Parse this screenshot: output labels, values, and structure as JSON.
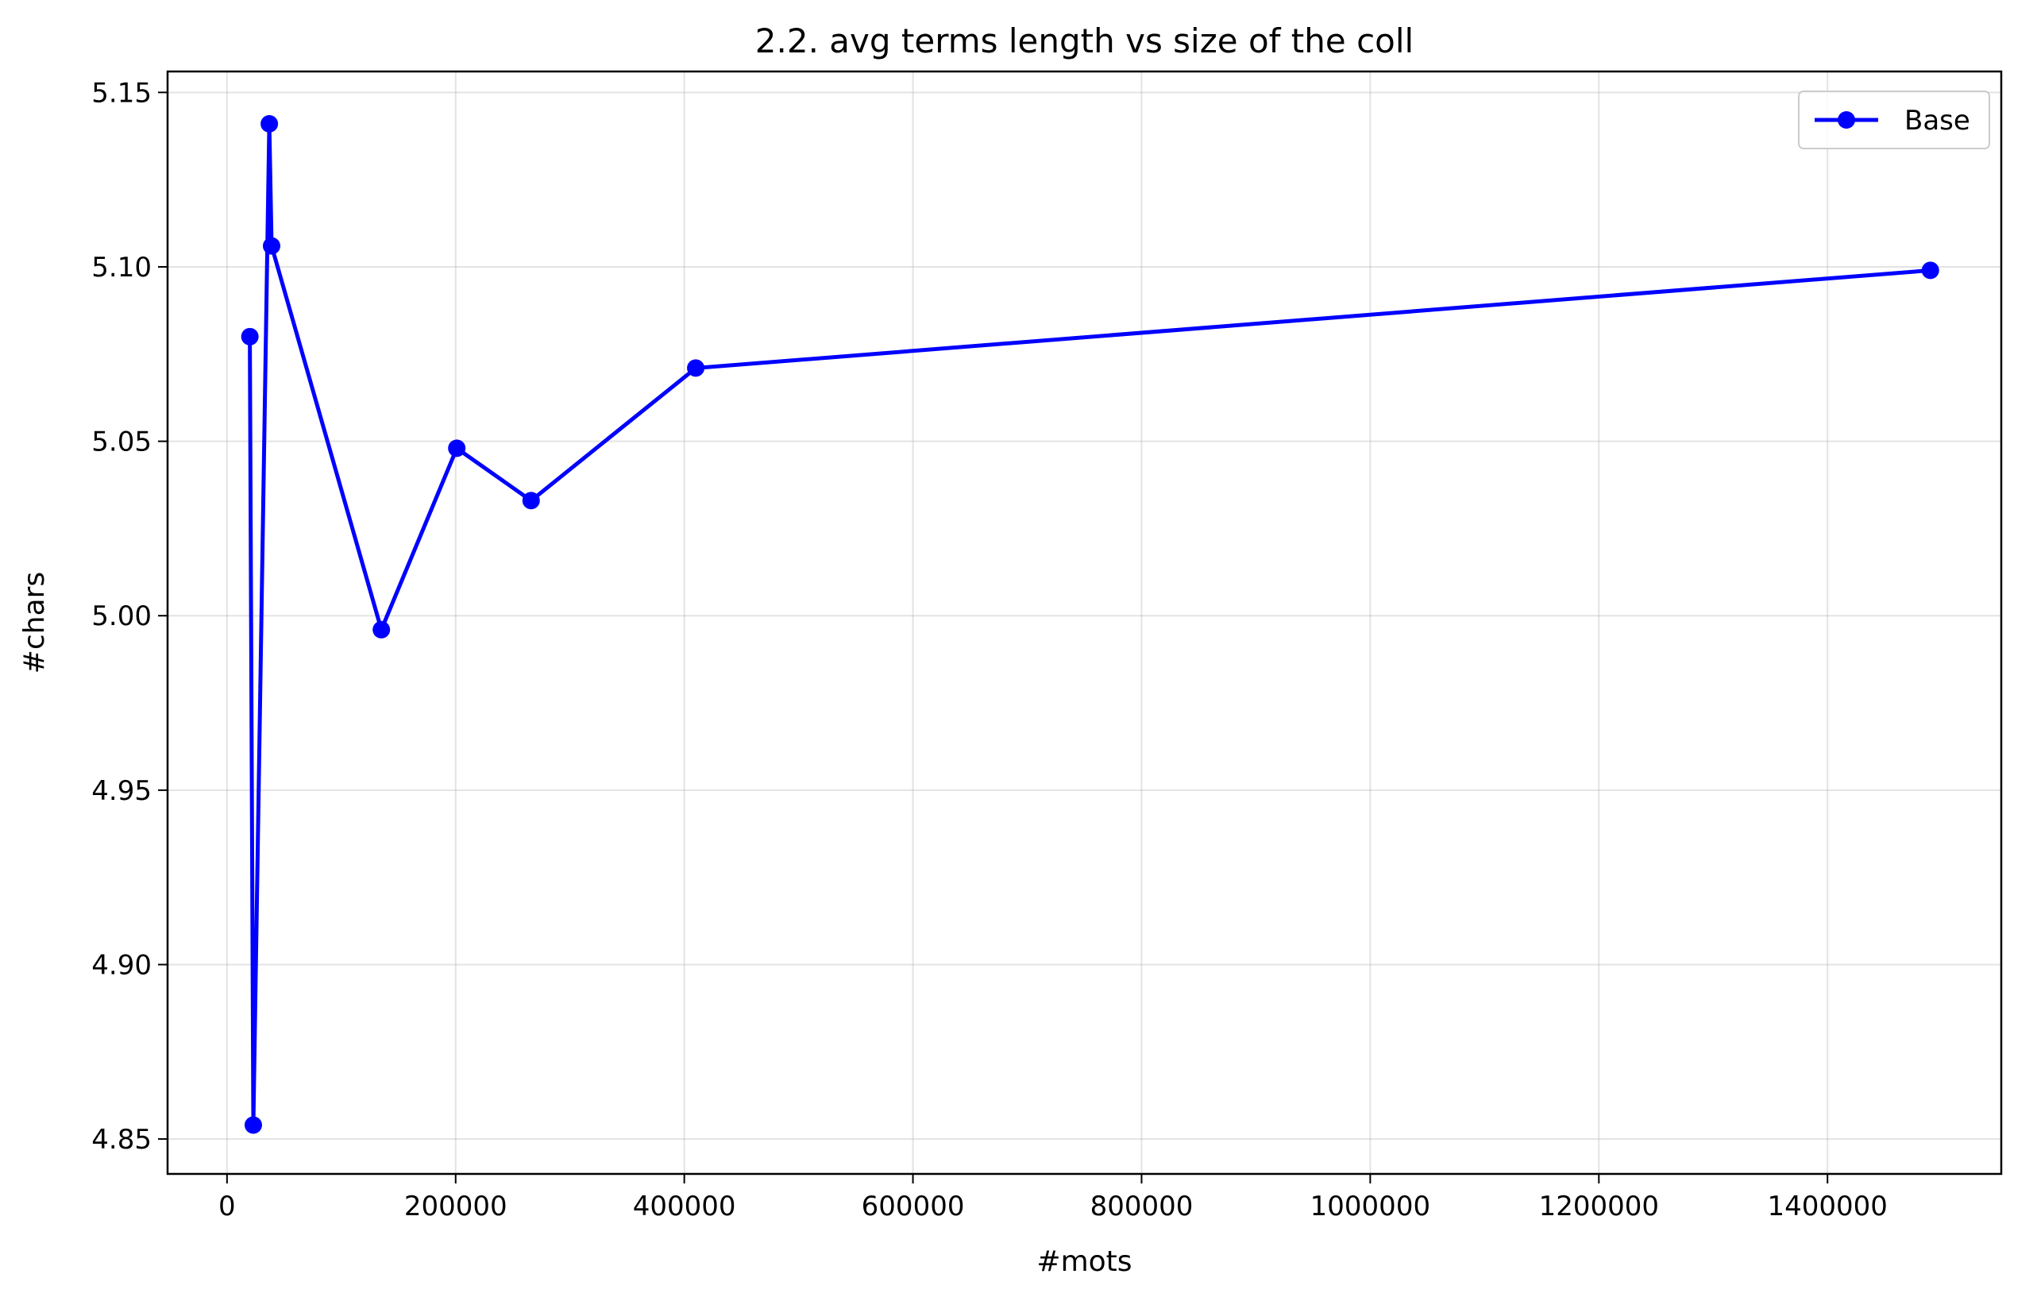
{
  "chart_data": {
    "type": "line",
    "title": "2.2. avg terms length vs size of the coll",
    "xlabel": "#mots",
    "ylabel": "#chars",
    "xlim": [
      -52000,
      1552000
    ],
    "ylim": [
      4.84,
      5.156
    ],
    "xticks": [
      0,
      200000,
      400000,
      600000,
      800000,
      1000000,
      1200000,
      1400000
    ],
    "xtick_labels": [
      "0",
      "200000",
      "400000",
      "600000",
      "800000",
      "1000000",
      "1200000",
      "1400000"
    ],
    "yticks": [
      4.85,
      4.9,
      4.95,
      5.0,
      5.05,
      5.1,
      5.15
    ],
    "ytick_labels": [
      "4.85",
      "4.90",
      "4.95",
      "5.00",
      "5.05",
      "5.10",
      "5.15"
    ],
    "grid": true,
    "legend_position": "upper right",
    "series": [
      {
        "name": "Base",
        "color": "#0000ff",
        "marker": "circle",
        "x": [
          20000,
          23000,
          37000,
          39000,
          135000,
          201000,
          266000,
          410000,
          1490000
        ],
        "y": [
          5.08,
          4.854,
          5.141,
          5.106,
          4.996,
          5.048,
          5.033,
          5.071,
          5.099
        ]
      }
    ]
  }
}
